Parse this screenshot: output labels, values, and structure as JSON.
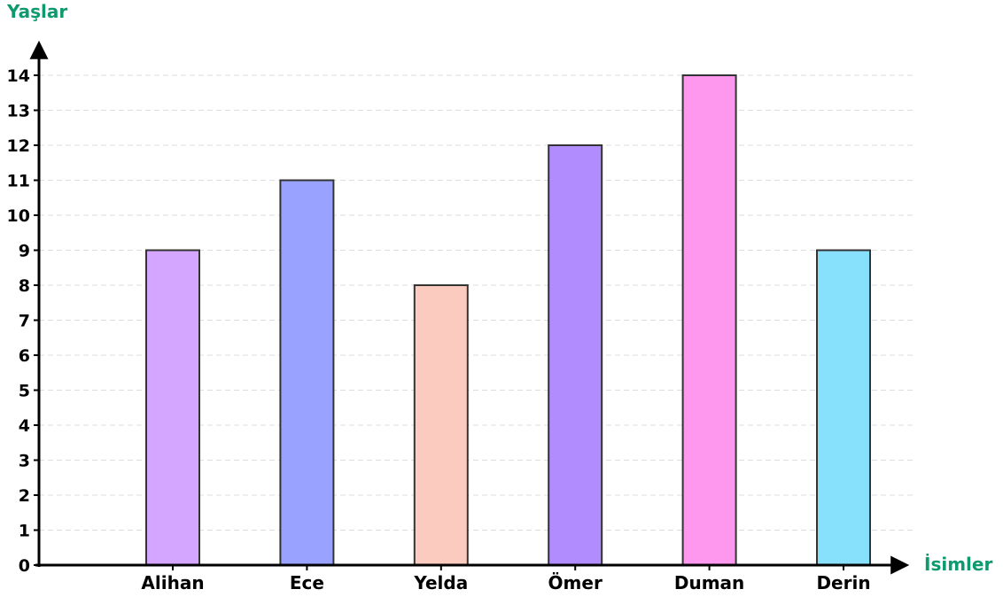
{
  "chart_data": {
    "type": "bar",
    "title": "",
    "xlabel": "İsimler",
    "ylabel": "Yaşlar",
    "categories": [
      "Alihan",
      "Ece",
      "Yelda",
      "Ömer",
      "Duman",
      "Derin"
    ],
    "values": [
      9,
      11,
      8,
      12,
      14,
      9
    ],
    "colors": [
      "#d5a6ff",
      "#99a3ff",
      "#fccbc0",
      "#b08cff",
      "#fd98ee",
      "#87e1fc"
    ],
    "ylim": [
      0,
      14
    ],
    "yticks": [
      0,
      1,
      2,
      3,
      4,
      5,
      6,
      7,
      8,
      9,
      10,
      11,
      12,
      13,
      14
    ],
    "grid": true,
    "label_color": "#0e9a6e",
    "bar_edge_color": "#333333",
    "grid_color": "#dddddd"
  }
}
